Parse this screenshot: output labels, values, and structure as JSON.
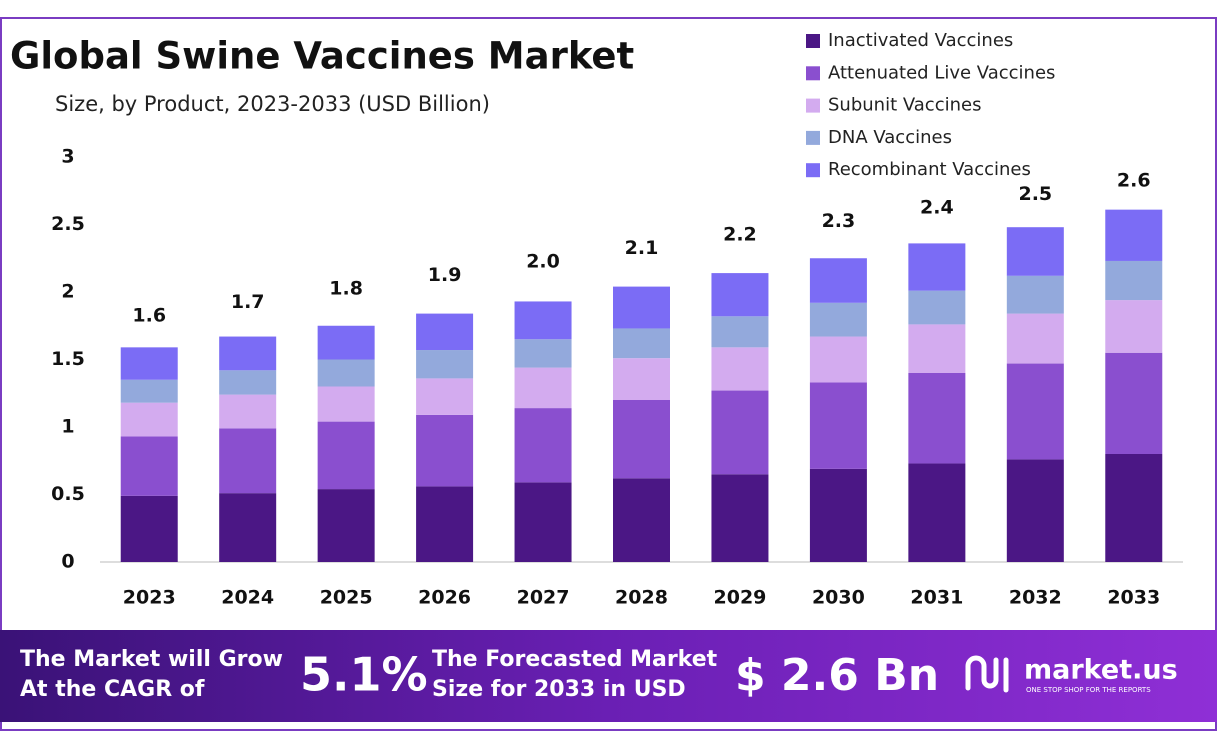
{
  "chart_data": {
    "type": "stacked_bar",
    "title": "Global Swine Vaccines Market",
    "subtitle": "Size, by Product, 2023-2033 (USD Billion)",
    "categories": [
      "2023",
      "2024",
      "2025",
      "2026",
      "2027",
      "2028",
      "2029",
      "2030",
      "2031",
      "2032",
      "2033"
    ],
    "series": [
      {
        "name": "Inactivated Vaccines",
        "color": "#4b1785",
        "values": [
          0.49,
          0.51,
          0.54,
          0.56,
          0.59,
          0.62,
          0.65,
          0.69,
          0.73,
          0.76,
          0.8
        ]
      },
      {
        "name": "Attenuated Live Vaccines",
        "color": "#8a4fcf",
        "values": [
          0.44,
          0.48,
          0.5,
          0.53,
          0.55,
          0.58,
          0.62,
          0.64,
          0.67,
          0.71,
          0.75
        ]
      },
      {
        "name": "Subunit Vaccines",
        "color": "#d3abef",
        "values": [
          0.25,
          0.25,
          0.26,
          0.27,
          0.3,
          0.31,
          0.32,
          0.34,
          0.36,
          0.37,
          0.39
        ]
      },
      {
        "name": "DNA Vaccines",
        "color": "#93a9dc",
        "values": [
          0.17,
          0.18,
          0.2,
          0.21,
          0.21,
          0.22,
          0.23,
          0.25,
          0.25,
          0.28,
          0.29
        ]
      },
      {
        "name": "Recombinant Vaccines",
        "color": "#7b6cf5",
        "values": [
          0.24,
          0.25,
          0.25,
          0.27,
          0.28,
          0.31,
          0.32,
          0.33,
          0.35,
          0.36,
          0.38
        ]
      }
    ],
    "totals": {
      "values": [
        1.6,
        1.7,
        1.8,
        1.9,
        2.0,
        2.1,
        2.2,
        2.3,
        2.4,
        2.5,
        2.6
      ],
      "value_labels": [
        "1.6",
        "1.7",
        "1.8",
        "1.9",
        "2.0",
        "2.1",
        "2.2",
        "2.3",
        "2.4",
        "2.5",
        "2.6"
      ]
    },
    "ylim": [
      0,
      3
    ],
    "yticks": [
      0,
      0.5,
      1,
      1.5,
      2,
      2.5,
      3
    ],
    "legend": "top-right",
    "grid": false
  },
  "footer": {
    "cagr_text": [
      "The Market will Grow",
      "At the CAGR of"
    ],
    "cagr": "5.1%",
    "forecast_text": [
      "The Forecasted Market",
      "Size for 2033 in USD"
    ],
    "forecast": "$ 2.6 Bn",
    "brand": "market.us",
    "tagline": "ONE STOP SHOP FOR THE REPORTS"
  }
}
